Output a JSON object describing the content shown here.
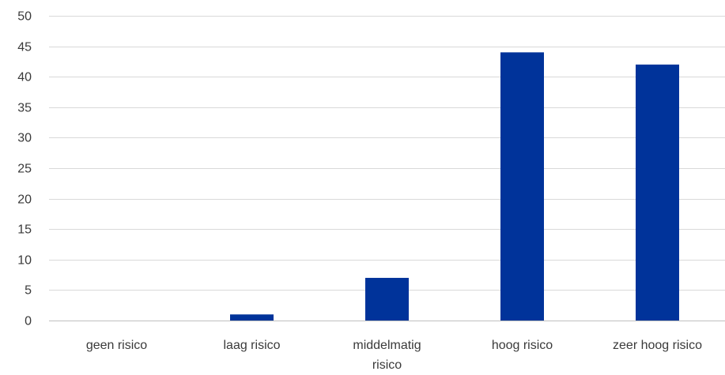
{
  "chart_data": {
    "type": "bar",
    "categories": [
      [
        "geen risico"
      ],
      [
        "laag risico"
      ],
      [
        "middelmatig",
        "risico"
      ],
      [
        "hoog risico"
      ],
      [
        "zeer hoog risico"
      ]
    ],
    "values": [
      0,
      1,
      7,
      44,
      42
    ],
    "ylim": [
      0,
      50
    ],
    "yticks": [
      0,
      5,
      10,
      15,
      20,
      25,
      30,
      35,
      40,
      45,
      50
    ],
    "grid": true,
    "bar_color": "#00339A",
    "title": "",
    "xlabel": "",
    "ylabel": ""
  }
}
